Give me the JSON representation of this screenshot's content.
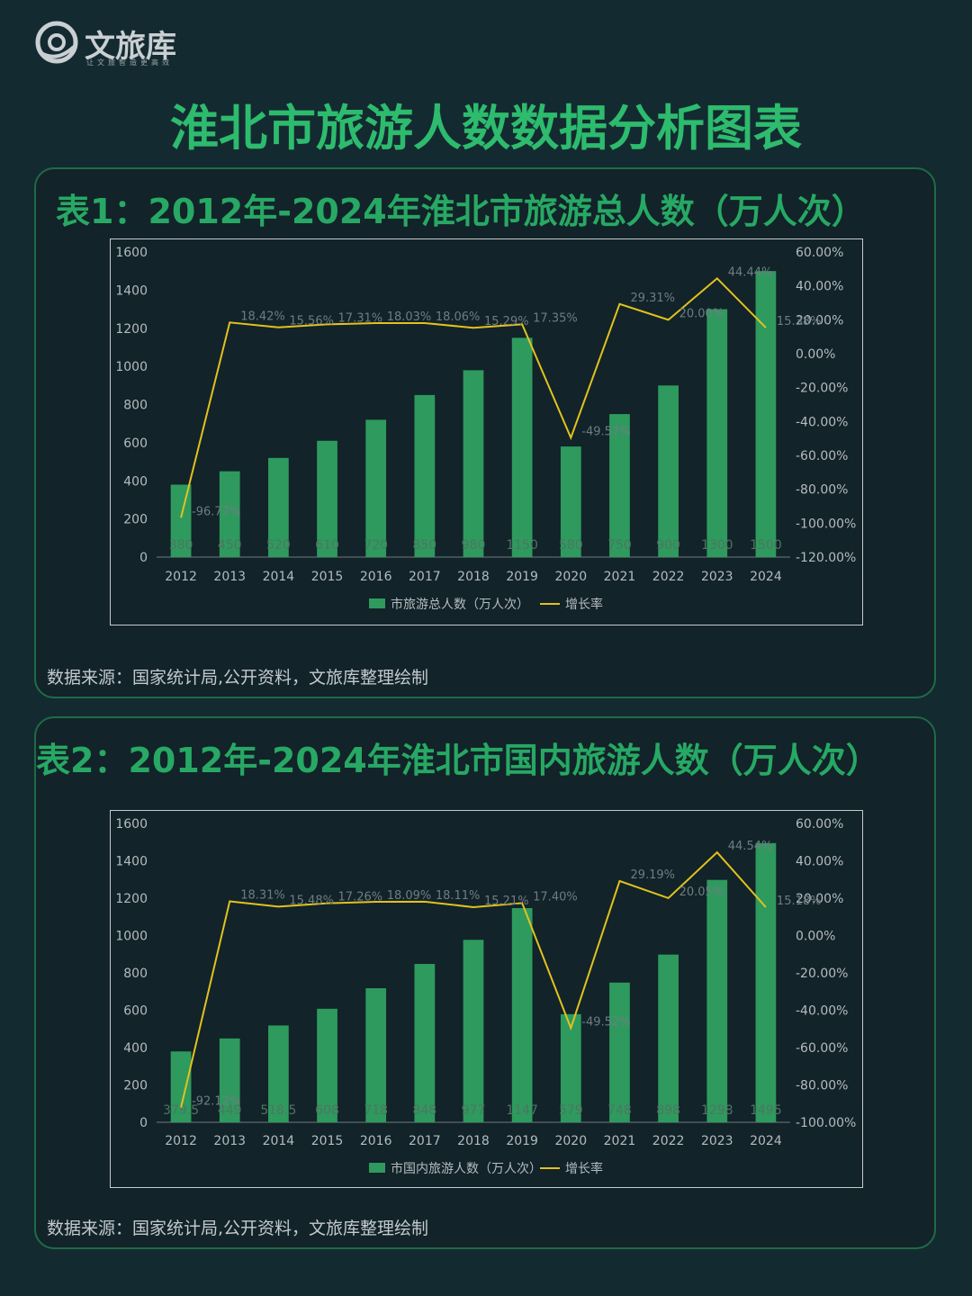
{
  "header": {
    "logo_name": "文旅库",
    "logo_slogan": "让文旅智造更高效",
    "title": "淮北市旅游人数数据分析图表"
  },
  "colors": {
    "background": "#142a31",
    "accent": "#2dbb6d",
    "bar": "#2e9a5e",
    "line": "#e2c21e"
  },
  "charts": [
    {
      "title": "表1：2012年-2024年淮北市旅游总人数（万人次）",
      "source": "数据来源：国家统计局,公开资料，文旅库整理绘制"
    },
    {
      "title": "表2：2012年-2024年淮北市国内旅游人数（万人次）",
      "source": "数据来源：国家统计局,公开资料，文旅库整理绘制"
    }
  ],
  "chart_data": [
    {
      "type": "bar",
      "categories": [
        "2012",
        "2013",
        "2014",
        "2015",
        "2016",
        "2017",
        "2018",
        "2019",
        "2020",
        "2021",
        "2022",
        "2023",
        "2024"
      ],
      "series": [
        {
          "name": "市旅游总人数（万人次）",
          "type": "bar",
          "axis": "left",
          "values": [
            380,
            450,
            520,
            610,
            720,
            850,
            980,
            1150,
            580,
            750,
            900,
            1300,
            1500
          ],
          "labels": [
            "380",
            "450",
            "520",
            "610",
            "720",
            "850",
            "980",
            "1150",
            "580",
            "750",
            "900",
            "1300",
            "1500"
          ]
        },
        {
          "name": "增长率",
          "type": "line",
          "axis": "right",
          "values": [
            -96.77,
            18.42,
            15.56,
            17.31,
            18.03,
            18.06,
            15.29,
            17.35,
            -49.57,
            29.31,
            20.0,
            44.44,
            15.38
          ],
          "labels": [
            "-96.77%",
            "18.42%",
            "15.56%",
            "17.31%",
            "18.03%",
            "18.06%",
            "15.29%",
            "17.35%",
            "-49.57%",
            "29.31%",
            "20.00%",
            "44.44%",
            "15.38%"
          ]
        }
      ],
      "y_left": {
        "min": 0,
        "max": 1600,
        "ticks": [
          "0",
          "200",
          "400",
          "600",
          "800",
          "1000",
          "1200",
          "1400",
          "1600"
        ]
      },
      "y_right": {
        "min": -120,
        "max": 60,
        "ticks": [
          "-120.00%",
          "-100.00%",
          "-80.00%",
          "-60.00%",
          "-40.00%",
          "-20.00%",
          "0.00%",
          "20.00%",
          "40.00%",
          "60.00%"
        ]
      },
      "legend": "bottom",
      "grid": false
    },
    {
      "type": "bar",
      "categories": [
        "2012",
        "2013",
        "2014",
        "2015",
        "2016",
        "2017",
        "2018",
        "2019",
        "2020",
        "2021",
        "2022",
        "2023",
        "2024"
      ],
      "series": [
        {
          "name": "市国内旅游人数（万人次）",
          "type": "bar",
          "axis": "left",
          "values": [
            379.5,
            449,
            518.5,
            608,
            718,
            848,
            977,
            1147,
            579,
            748,
            898,
            1298,
            1495
          ],
          "labels": [
            "379.5",
            "449",
            "518.5",
            "608",
            "718",
            "848",
            "977",
            "1147",
            "579",
            "748",
            "898",
            "1298",
            "1495"
          ]
        },
        {
          "name": "增长率",
          "type": "line",
          "axis": "right",
          "values": [
            -92.12,
            18.31,
            15.48,
            17.26,
            18.09,
            18.11,
            15.21,
            17.4,
            -49.52,
            29.19,
            20.05,
            44.54,
            15.18
          ],
          "labels": [
            "-92.12%",
            "18.31%",
            "15.48%",
            "17.26%",
            "18.09%",
            "18.11%",
            "15.21%",
            "17.40%",
            "-49.52%",
            "29.19%",
            "20.05%",
            "44.54%",
            "15.18%"
          ]
        }
      ],
      "y_left": {
        "min": 0,
        "max": 1600,
        "ticks": [
          "0",
          "200",
          "400",
          "600",
          "800",
          "1000",
          "1200",
          "1400",
          "1600"
        ]
      },
      "y_right": {
        "min": -100,
        "max": 60,
        "ticks": [
          "-100.00%",
          "-80.00%",
          "-60.00%",
          "-40.00%",
          "-20.00%",
          "0.00%",
          "20.00%",
          "40.00%",
          "60.00%"
        ]
      },
      "legend": "bottom",
      "grid": false
    }
  ]
}
